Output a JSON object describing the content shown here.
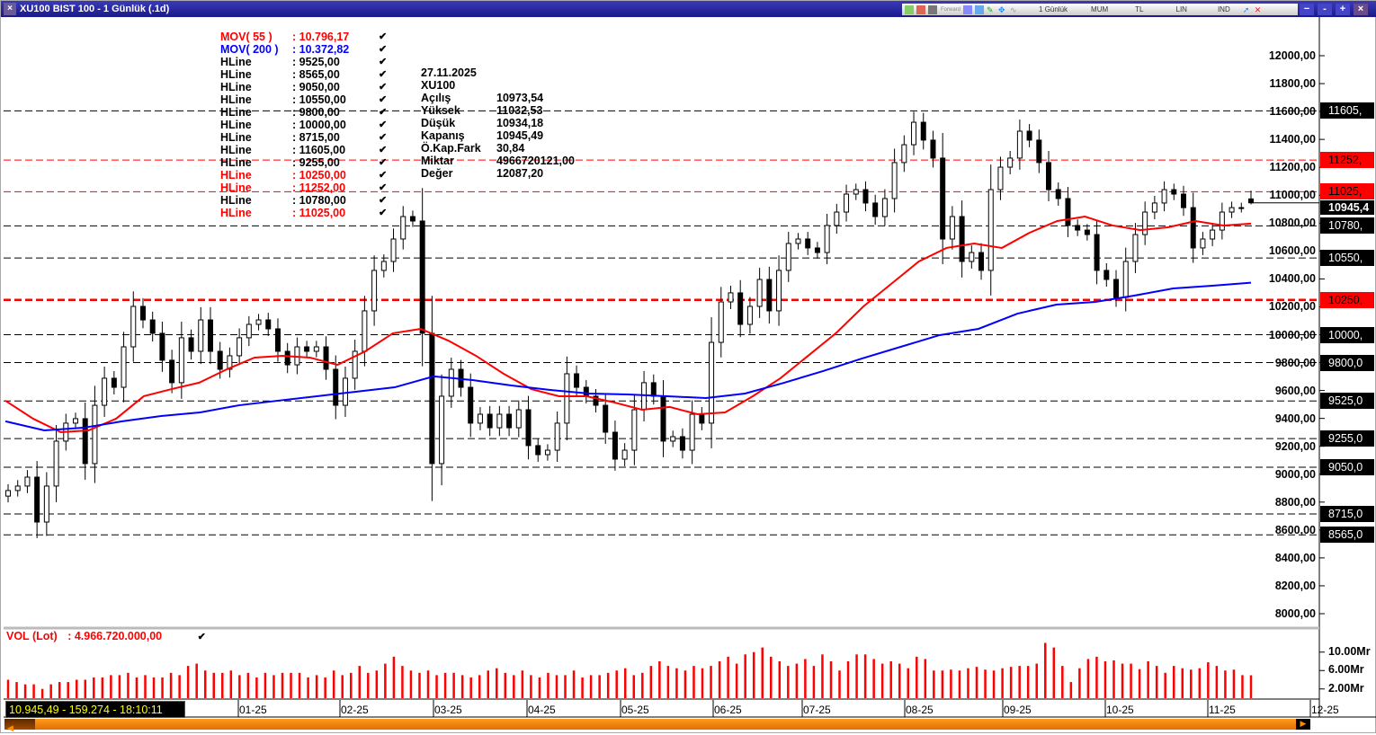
{
  "window": {
    "title": "XU100 BIST 100 - 1 Günlük (.1d)",
    "close_label": "×",
    "toolbar": {
      "period": "1 Günlük",
      "chart_type": "MUM",
      "currency": "TL",
      "scale": "LIN",
      "indicators": "IND",
      "forward": "Forward"
    },
    "win_buttons": [
      "−",
      "-",
      "+",
      "×"
    ]
  },
  "legend": [
    {
      "name": "MOV( 55 )",
      "value": ": 10.796,17",
      "color": "#ff0000"
    },
    {
      "name": "MOV( 200 )",
      "value": ": 10.372,82",
      "color": "#0000ff"
    },
    {
      "name": "HLine",
      "value": ": 9525,00",
      "color": "#000000"
    },
    {
      "name": "HLine",
      "value": ": 8565,00",
      "color": "#000000"
    },
    {
      "name": "HLine",
      "value": ": 9050,00",
      "color": "#000000"
    },
    {
      "name": "HLine",
      "value": ": 10550,00",
      "color": "#000000"
    },
    {
      "name": "HLine",
      "value": ": 9800,00",
      "color": "#000000"
    },
    {
      "name": "HLine",
      "value": ": 10000,00",
      "color": "#000000"
    },
    {
      "name": "HLine",
      "value": ": 8715,00",
      "color": "#000000"
    },
    {
      "name": "HLine",
      "value": ": 11605,00",
      "color": "#000000"
    },
    {
      "name": "HLine",
      "value": ": 9255,00",
      "color": "#000000"
    },
    {
      "name": "HLine",
      "value": ": 10250,00",
      "color": "#ff0000"
    },
    {
      "name": "HLine",
      "value": ": 11252,00",
      "color": "#ff0000"
    },
    {
      "name": "HLine",
      "value": ": 10780,00",
      "color": "#000000"
    },
    {
      "name": "HLine",
      "value": ": 11025,00",
      "color": "#ff0000"
    }
  ],
  "info": {
    "date": "27.11.2025",
    "symbol": "XU100",
    "rows": [
      {
        "k": "Açılış",
        "v": "10973,54"
      },
      {
        "k": "Yüksek",
        "v": "11032,53"
      },
      {
        "k": "Düşük",
        "v": "10934,18"
      },
      {
        "k": "Kapanış",
        "v": "10945,49"
      },
      {
        "k": "Ö.Kap.Fark",
        "v": "30,84"
      },
      {
        "k": "Miktar",
        "v": "4966720121,00"
      },
      {
        "k": "Değer",
        "v": "12087,20"
      }
    ]
  },
  "volume": {
    "label": "VOL (Lot)",
    "value": ": 4.966.720.000,00"
  },
  "status": "10.945,49 - 159.274 - 18:10:11",
  "chart_data": {
    "type": "candlestick",
    "y_ticks": [
      "12000,00",
      "11800,00",
      "11600,00",
      "11400,00",
      "11200,00",
      "11000,00",
      "10800,00",
      "10600,00",
      "10400,00",
      "10200,00",
      "10000,00",
      "9800,00",
      "9600,00",
      "9400,00",
      "9200,00",
      "9000,00",
      "8800,00",
      "8600,00",
      "8400,00",
      "8200,00",
      "8000,00"
    ],
    "ylim": [
      8000,
      12000
    ],
    "x_ticks": [
      "01-25",
      "02-25",
      "03-25",
      "04-25",
      "05-25",
      "06-25",
      "07-25",
      "08-25",
      "09-25",
      "10-25",
      "11-25",
      "12-25"
    ],
    "last_price_label": "10945,4",
    "hlines": [
      {
        "value": 11605,
        "label": "11605,",
        "color": "#000000"
      },
      {
        "value": 11252,
        "label": "11252,",
        "color": "#ff0000"
      },
      {
        "value": 11025,
        "label": "11025,",
        "color": "#ff0000"
      },
      {
        "value": 10780,
        "label": "10780,",
        "color": "#000000"
      },
      {
        "value": 10550,
        "label": "10550,",
        "color": "#000000"
      },
      {
        "value": 10250,
        "label": "10250,",
        "color": "#ff0000"
      },
      {
        "value": 10000,
        "label": "10000,",
        "color": "#000000"
      },
      {
        "value": 9800,
        "label": "9800,0",
        "color": "#000000"
      },
      {
        "value": 9525,
        "label": "9525,0",
        "color": "#000000"
      },
      {
        "value": 9255,
        "label": "9255,0",
        "color": "#000000"
      },
      {
        "value": 9050,
        "label": "9050,0",
        "color": "#000000"
      },
      {
        "value": 8715,
        "label": "8715,0",
        "color": "#000000"
      },
      {
        "value": 8565,
        "label": "8565,0",
        "color": "#000000"
      }
    ],
    "closes": [
      8883,
      8915,
      8979,
      8657,
      8915,
      9237,
      9366,
      9398,
      9076,
      9494,
      9688,
      9623,
      9913,
      10203,
      10106,
      10010,
      9817,
      9656,
      9978,
      9881,
      10106,
      9881,
      9752,
      9849,
      9978,
      10074,
      10106,
      10042,
      9881,
      9784,
      9913,
      9881,
      9913,
      9752,
      9494,
      9688,
      9881,
      10171,
      10461,
      10525,
      10686,
      10847,
      10815,
      10010,
      9076,
      9559,
      9752,
      9623,
      9366,
      9430,
      9333,
      9430,
      9333,
      9462,
      9205,
      9140,
      9172,
      9366,
      9720,
      9623,
      9559,
      9494,
      9301,
      9108,
      9172,
      9462,
      9656,
      9559,
      9237,
      9269,
      9172,
      9430,
      9366,
      9945,
      10235,
      10300,
      10074,
      10203,
      10396,
      10171,
      10461,
      10654,
      10686,
      10622,
      10589,
      10783,
      10879,
      11008,
      11040,
      10944,
      10847,
      10976,
      11234,
      11362,
      11523,
      11395,
      11266,
      10686,
      10847,
      10525,
      10589,
      10461,
      11040,
      11201,
      11266,
      11459,
      11395,
      11234,
      11040,
      10976,
      10783,
      10750,
      10718,
      10461,
      10396,
      10267,
      10525,
      10718,
      10879,
      10944,
      11040,
      11008,
      10911,
      10622,
      10686,
      10750,
      10879,
      10911,
      10911,
      10945.49
    ],
    "last_candle": {
      "open": 10973.54,
      "high": 11032.53,
      "low": 10934.18,
      "close": 10945.49
    },
    "series": [
      {
        "name": "MOV( 55 )",
        "color": "#ff0000",
        "values": [
          9527,
          9398,
          9301,
          9314,
          9398,
          9559,
          9610,
          9656,
          9752,
          9836,
          9849,
          9836,
          9784,
          9881,
          10010,
          10042,
          9958,
          9849,
          9720,
          9610,
          9559,
          9559,
          9514,
          9462,
          9482,
          9430,
          9443,
          9559,
          9688,
          9849,
          10010,
          10203,
          10364,
          10525,
          10622,
          10654,
          10622,
          10731,
          10815,
          10847,
          10783,
          10750,
          10770,
          10815,
          10783,
          10796.17
        ]
      },
      {
        "name": "MOV( 200 )",
        "color": "#0000ff",
        "values": [
          9379,
          9314,
          9333,
          9379,
          9417,
          9443,
          9494,
          9527,
          9559,
          9591,
          9623,
          9701,
          9675,
          9636,
          9604,
          9578,
          9572,
          9559,
          9546,
          9578,
          9655,
          9739,
          9829,
          9913,
          9997,
          10042,
          10151,
          10216,
          10235,
          10280,
          10332,
          10351,
          10372.82
        ]
      }
    ],
    "volume": {
      "unit": "Mr",
      "ticks": [
        "10.00Mr",
        "6.00Mr",
        "2.00Mr"
      ],
      "values": [
        4,
        3.5,
        3,
        3,
        2,
        3,
        3.5,
        3.5,
        4,
        4,
        4.5,
        4.5,
        5,
        5,
        5.5,
        4.5,
        5,
        4.5,
        4.5,
        5.5,
        5,
        7,
        7.5,
        6,
        5.5,
        5.5,
        6,
        5,
        5.5,
        4.5,
        5.5,
        5,
        5.5,
        5.5,
        5.5,
        4.5,
        5,
        4.5,
        6,
        5,
        5.5,
        7,
        5.5,
        6,
        7.5,
        9,
        7,
        6,
        5.5,
        6,
        5,
        5.5,
        5.5,
        5,
        4.5,
        5,
        6,
        6.5,
        5.5,
        5,
        6,
        5,
        4.5,
        5.5,
        5,
        5,
        6,
        4.5,
        5,
        5,
        5.5,
        6,
        6.5,
        5,
        5.5,
        7,
        8,
        7,
        6.5,
        6,
        7,
        6.5,
        7,
        8,
        9,
        7.5,
        9.5,
        10,
        11,
        9,
        8,
        7,
        7.5,
        8.5,
        7,
        9.5,
        8,
        6,
        8,
        9.5,
        9.5,
        8.5,
        7.5,
        8,
        7.5,
        6.5,
        9,
        8.5,
        6,
        6,
        6.2,
        6,
        6.5,
        6.8,
        6.2,
        6,
        6.5,
        6.8,
        7,
        7,
        7.5,
        12,
        11,
        7,
        3.5,
        6.5,
        8.5,
        9,
        8,
        8.2,
        7.5,
        7.5,
        6.3,
        8,
        7,
        5.5,
        7,
        6.5,
        6.2,
        6.5,
        7.8,
        7,
        6,
        6.2,
        5,
        4.97
      ]
    }
  }
}
